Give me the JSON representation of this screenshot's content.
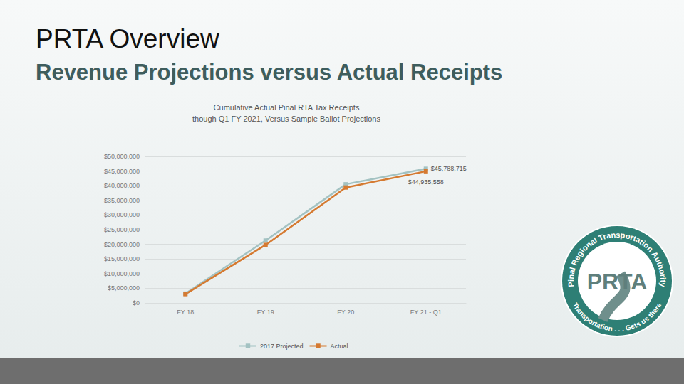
{
  "slide": {
    "title": "PRTA Overview",
    "subtitle": "Revenue Projections versus Actual Receipts",
    "logo": {
      "top_text": "Pinal Regional Transportation Authority",
      "center": "PRTA",
      "bottom_text": "Transportation . . . Gets us there"
    }
  },
  "chart_data": {
    "type": "line",
    "title": "Cumulative Actual Pinal RTA Tax Receipts\nthough Q1 FY 2021, Versus Sample Ballot Projections",
    "categories": [
      "FY 18",
      "FY 19",
      "FY 20",
      "FY 21 - Q1"
    ],
    "series": [
      {
        "name": "2017 Projected",
        "color": "#a3c2c2",
        "marker": "square",
        "values": [
          3200000,
          21300000,
          40500000,
          45788715
        ],
        "value_labels": [
          null,
          null,
          null,
          "$45,788,715"
        ]
      },
      {
        "name": "Actual",
        "color": "#d57a31",
        "marker": "square",
        "values": [
          3000000,
          19800000,
          39400000,
          44935558
        ],
        "value_labels": [
          null,
          null,
          null,
          "$44,935,558"
        ]
      }
    ],
    "ylim": [
      0,
      50000000
    ],
    "yticks": [
      {
        "value": 0,
        "label": "$0"
      },
      {
        "value": 5000000,
        "label": "$5,000,000"
      },
      {
        "value": 10000000,
        "label": "$10,000,000"
      },
      {
        "value": 15000000,
        "label": "$15,000,000"
      },
      {
        "value": 20000000,
        "label": "$20,000,000"
      },
      {
        "value": 25000000,
        "label": "$25,000,000"
      },
      {
        "value": 30000000,
        "label": "$30,000,000"
      },
      {
        "value": 35000000,
        "label": "$35,000,000"
      },
      {
        "value": 40000000,
        "label": "$40,000,000"
      },
      {
        "value": 45000000,
        "label": "$45,000,000"
      },
      {
        "value": 50000000,
        "label": "$50,000,000"
      }
    ],
    "grid": true,
    "legend": "bottom",
    "data_labels": true
  }
}
